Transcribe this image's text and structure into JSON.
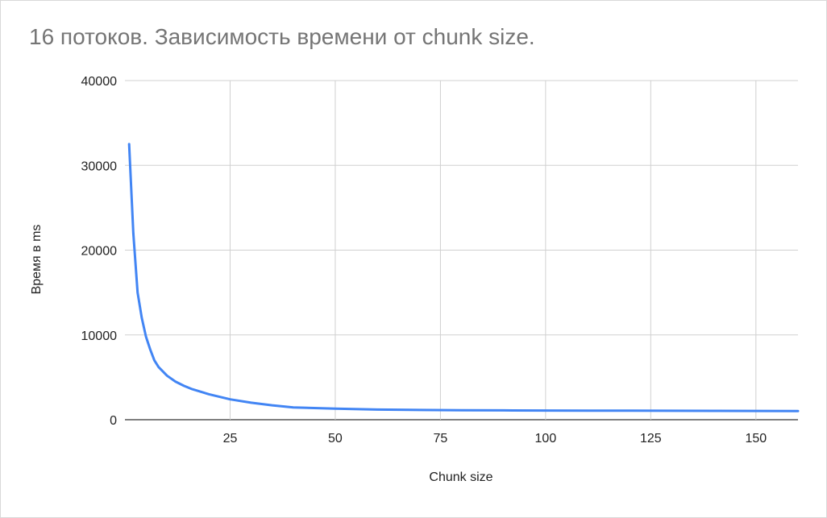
{
  "chart_data": {
    "type": "line",
    "title": "16 потоков. Зависимость времени от chunk size.",
    "xlabel": "Chunk size",
    "ylabel": "Время в ms",
    "xlim": [
      0,
      160
    ],
    "ylim": [
      0,
      40000
    ],
    "x_ticks": [
      25,
      50,
      75,
      100,
      125,
      150
    ],
    "y_ticks": [
      0,
      10000,
      20000,
      30000,
      40000
    ],
    "x_tick_labels": [
      "25",
      "50",
      "75",
      "100",
      "125",
      "150"
    ],
    "y_tick_labels": [
      "0",
      "10000",
      "20000",
      "30000",
      "40000"
    ],
    "grid": true,
    "legend": "none",
    "series": [
      {
        "color": "#4285f4",
        "x": [
          1,
          2,
          3,
          4,
          5,
          6,
          7,
          8,
          10,
          12,
          14,
          16,
          20,
          25,
          30,
          35,
          40,
          50,
          60,
          70,
          80,
          90,
          100,
          110,
          120,
          130,
          140,
          150,
          160
        ],
        "y": [
          32500,
          22000,
          15000,
          12000,
          9800,
          8300,
          7000,
          6200,
          5200,
          4500,
          4000,
          3600,
          3000,
          2400,
          2000,
          1700,
          1450,
          1300,
          1200,
          1150,
          1120,
          1100,
          1080,
          1070,
          1060,
          1050,
          1045,
          1040,
          1030
        ]
      }
    ]
  }
}
